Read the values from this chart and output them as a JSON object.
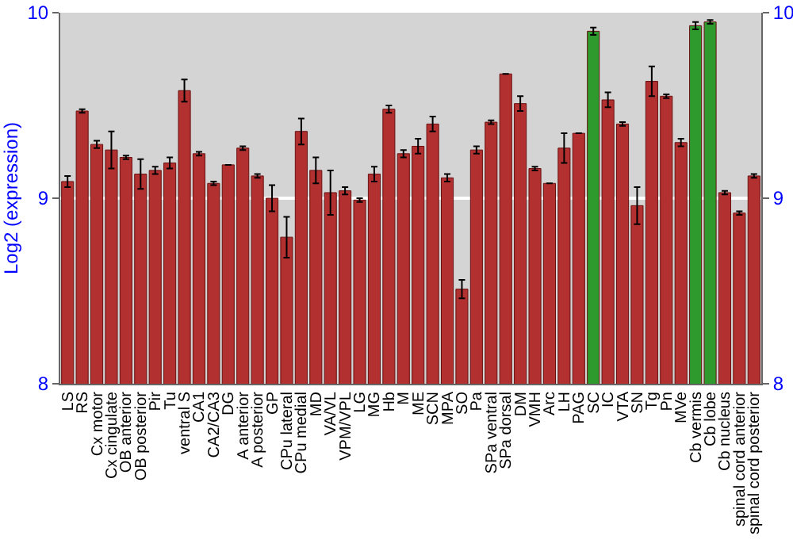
{
  "chart_data": {
    "type": "bar",
    "ylabel": "Log2 (expression)",
    "categories": [
      "LS",
      "RS",
      "Cx motor",
      "Cx cingulate",
      "OB anterior",
      "OB posterior",
      "Pir",
      "Tu",
      "ventral S",
      "CA1",
      "CA2/CA3",
      "DG",
      "A anterior",
      "A posterior",
      "GP",
      "CPu lateral",
      "CPu medial",
      "MD",
      "VA/VL",
      "VPM/VPL",
      "LG",
      "MG",
      "Hb",
      "M",
      "ME",
      "SCN",
      "MPA",
      "SO",
      "Pa",
      "SPa ventral",
      "SPa dorsal",
      "DM",
      "VMH",
      "Arc",
      "LH",
      "PAG",
      "SC",
      "IC",
      "VTA",
      "SN",
      "Tg",
      "Pn",
      "MVe",
      "Cb vermis",
      "Cb lobe",
      "Cb nucleus",
      "spinal cord anterior",
      "spinal cord posterior"
    ],
    "values": [
      9.09,
      9.47,
      9.29,
      9.26,
      9.22,
      9.13,
      9.15,
      9.19,
      9.58,
      9.24,
      9.08,
      9.18,
      9.27,
      9.12,
      9.0,
      8.79,
      9.36,
      9.15,
      9.03,
      9.04,
      8.99,
      9.13,
      9.48,
      9.24,
      9.28,
      9.4,
      9.11,
      8.51,
      9.26,
      9.41,
      9.67,
      9.51,
      9.16,
      9.08,
      9.27,
      9.35,
      9.9,
      9.53,
      9.4,
      8.96,
      9.63,
      9.55,
      9.3,
      9.93,
      9.95,
      9.03,
      8.92,
      9.12
    ],
    "errors": [
      0.03,
      0.01,
      0.02,
      0.1,
      0.01,
      0.08,
      0.02,
      0.03,
      0.06,
      0.01,
      0.01,
      null,
      0.01,
      0.01,
      0.07,
      0.11,
      0.07,
      0.07,
      0.12,
      0.02,
      0.01,
      0.04,
      0.02,
      0.02,
      0.04,
      0.04,
      0.02,
      0.05,
      0.02,
      0.01,
      null,
      0.04,
      0.01,
      null,
      0.08,
      null,
      0.02,
      0.04,
      0.01,
      0.1,
      0.08,
      0.01,
      0.02,
      0.02,
      0.01,
      0.01,
      0.01,
      0.01
    ],
    "colors": [
      "#b23030",
      "#b23030",
      "#b23030",
      "#b23030",
      "#b23030",
      "#b23030",
      "#b23030",
      "#b23030",
      "#b23030",
      "#b23030",
      "#b23030",
      "#b23030",
      "#b23030",
      "#b23030",
      "#b23030",
      "#b23030",
      "#b23030",
      "#b23030",
      "#b23030",
      "#b23030",
      "#b23030",
      "#b23030",
      "#b23030",
      "#b23030",
      "#b23030",
      "#b23030",
      "#b23030",
      "#b23030",
      "#b23030",
      "#b23030",
      "#b23030",
      "#b23030",
      "#b23030",
      "#b23030",
      "#b23030",
      "#b23030",
      "#2e9a2e",
      "#b23030",
      "#b23030",
      "#b23030",
      "#b23030",
      "#b23030",
      "#b23030",
      "#2e9a2e",
      "#2e9a2e",
      "#b23030",
      "#b23030",
      "#b23030"
    ],
    "ylim": [
      8,
      10
    ],
    "yticks": [
      8,
      9,
      10
    ],
    "y2lim": [
      8,
      10
    ],
    "y2ticks": [
      8,
      9,
      10
    ],
    "grid": "y"
  }
}
